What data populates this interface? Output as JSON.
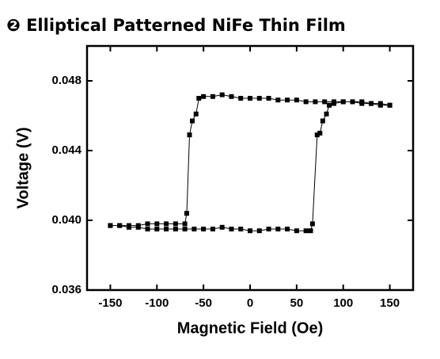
{
  "chart_data": {
    "type": "line",
    "title": "❷ Elliptical Patterned NiFe Thin Film",
    "x_label": "Magnetic Field (Oe)",
    "y_label": "Voltage (V)",
    "x": [
      -150,
      -140,
      -130,
      -120,
      -110,
      -100,
      -90,
      -80,
      -70,
      -60,
      -50,
      -40,
      -30,
      -20,
      -10,
      0,
      10,
      20,
      30,
      40,
      50,
      60,
      65,
      67,
      72,
      75,
      78,
      82,
      85,
      90,
      100,
      110,
      120,
      130,
      140,
      150,
      150,
      140,
      130,
      120,
      110,
      100,
      90,
      80,
      70,
      60,
      50,
      40,
      30,
      20,
      10,
      0,
      -10,
      -20,
      -30,
      -40,
      -50,
      -55,
      -58,
      -62,
      -65,
      -68,
      -70,
      -80,
      -90,
      -100,
      -110,
      -120,
      -130,
      -140,
      -150
    ],
    "values": [
      0.0397,
      0.0397,
      0.0396,
      0.0396,
      0.0395,
      0.0395,
      0.0395,
      0.0395,
      0.0395,
      0.0395,
      0.0395,
      0.0395,
      0.0396,
      0.0395,
      0.0395,
      0.0394,
      0.0394,
      0.0395,
      0.0395,
      0.0395,
      0.0394,
      0.0394,
      0.0394,
      0.0398,
      0.0449,
      0.045,
      0.0457,
      0.0461,
      0.0466,
      0.0467,
      0.0468,
      0.0468,
      0.0467,
      0.0467,
      0.0466,
      0.0466,
      0.0466,
      0.0467,
      0.0467,
      0.0468,
      0.0468,
      0.0468,
      0.0468,
      0.0468,
      0.0468,
      0.0468,
      0.0469,
      0.0469,
      0.0469,
      0.047,
      0.047,
      0.047,
      0.047,
      0.0471,
      0.0472,
      0.0471,
      0.0471,
      0.047,
      0.0461,
      0.0457,
      0.0449,
      0.0404,
      0.0398,
      0.0398,
      0.0398,
      0.0398,
      0.0398,
      0.0397,
      0.0397,
      0.0397,
      0.0397
    ],
    "color": "#000000",
    "xlim": [
      -175,
      175
    ],
    "xticks": [
      -150,
      -100,
      -50,
      0,
      50,
      100,
      150
    ],
    "ylim": [
      0.036,
      0.05
    ],
    "yticks": [
      0.036,
      {
        "value": 0.04,
        "label": "0.040"
      },
      0.044,
      0.048
    ]
  }
}
